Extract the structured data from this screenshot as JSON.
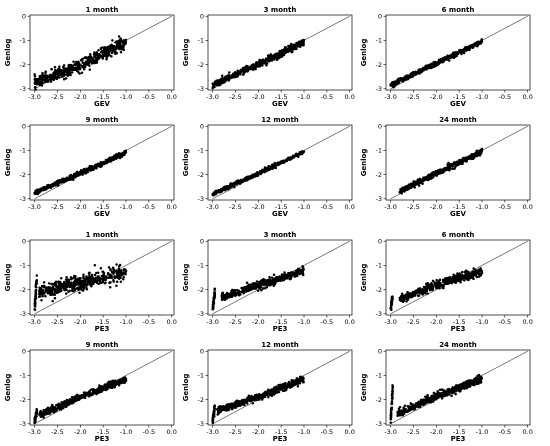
{
  "figure": {
    "rows": [
      {
        "xlabel": "GEV",
        "ylabel": "Genlog",
        "panels": [
          "1 month",
          "3 month",
          "6 month"
        ]
      },
      {
        "xlabel": "GEV",
        "ylabel": "Genlog",
        "panels": [
          "9 month",
          "12 month",
          "24 month"
        ]
      },
      {
        "xlabel": "PE3",
        "ylabel": "Genlog",
        "panels": [
          "1 month",
          "3 month",
          "6 month"
        ]
      },
      {
        "xlabel": "PE3",
        "ylabel": "Genlog",
        "panels": [
          "9 month",
          "12 month",
          "24 month"
        ]
      }
    ]
  },
  "chart_data": [
    {
      "type": "scatter",
      "title": "1 month",
      "xlabel": "GEV",
      "ylabel": "Genlog",
      "xlim": [
        -3.1,
        0.05
      ],
      "ylim": [
        -3.05,
        0.05
      ],
      "xticks": [
        "-3.0",
        "-2.5",
        "-2.0",
        "-1.5",
        "-1.0",
        "-0.5",
        "0.0"
      ],
      "yticks": [
        "0",
        "-1",
        "-2",
        "-3"
      ],
      "reference_line": {
        "x": [
          -3.0,
          0.0
        ],
        "y": [
          -3.0,
          0.0
        ]
      },
      "point_clouds": [
        {
          "x_range": [
            -3.0,
            -1.0
          ],
          "y_at_x": [
            [
              -3.0,
              -2.75
            ],
            [
              -2.0,
              -2.05
            ],
            [
              -1.0,
              -1.05
            ]
          ],
          "spread": 0.28
        }
      ]
    },
    {
      "type": "scatter",
      "title": "3 month",
      "xlabel": "GEV",
      "ylabel": "Genlog",
      "xlim": [
        -3.1,
        0.05
      ],
      "ylim": [
        -3.05,
        0.05
      ],
      "xticks": [
        "-3.0",
        "-2.5",
        "-2.0",
        "-1.5",
        "-1.0",
        "-0.5",
        "0.0"
      ],
      "yticks": [
        "0",
        "-1",
        "-2",
        "-3"
      ],
      "reference_line": {
        "x": [
          -3.0,
          0.0
        ],
        "y": [
          -3.0,
          0.0
        ]
      },
      "point_clouds": [
        {
          "x_range": [
            -3.0,
            -1.0
          ],
          "y_at_x": [
            [
              -3.0,
              -2.85
            ],
            [
              -2.0,
              -2.0
            ],
            [
              -1.0,
              -1.05
            ]
          ],
          "spread": 0.15
        }
      ]
    },
    {
      "type": "scatter",
      "title": "6 month",
      "xlabel": "GEV",
      "ylabel": "Genlog",
      "xlim": [
        -3.1,
        0.05
      ],
      "ylim": [
        -3.05,
        0.05
      ],
      "xticks": [
        "-3.0",
        "-2.5",
        "-2.0",
        "-1.5",
        "-1.0",
        "-0.5",
        "0.0"
      ],
      "yticks": [
        "0",
        "-1",
        "-2",
        "-3"
      ],
      "reference_line": {
        "x": [
          -3.0,
          0.0
        ],
        "y": [
          -3.0,
          0.0
        ]
      },
      "point_clouds": [
        {
          "x_range": [
            -3.0,
            -1.0
          ],
          "y_at_x": [
            [
              -3.0,
              -2.85
            ],
            [
              -2.0,
              -1.95
            ],
            [
              -1.0,
              -1.05
            ]
          ],
          "spread": 0.1
        }
      ]
    },
    {
      "type": "scatter",
      "title": "9 month",
      "xlabel": "GEV",
      "ylabel": "Genlog",
      "xlim": [
        -3.1,
        0.05
      ],
      "ylim": [
        -3.05,
        0.05
      ],
      "xticks": [
        "-3.0",
        "-2.5",
        "-2.0",
        "-1.5",
        "-1.0",
        "-0.5",
        "0.0"
      ],
      "yticks": [
        "0",
        "-1",
        "-2",
        "-3"
      ],
      "reference_line": {
        "x": [
          -3.0,
          0.0
        ],
        "y": [
          -3.0,
          0.0
        ]
      },
      "point_clouds": [
        {
          "x_range": [
            -3.0,
            -1.0
          ],
          "y_at_x": [
            [
              -3.0,
              -2.75
            ],
            [
              -2.0,
              -1.95
            ],
            [
              -1.0,
              -1.1
            ]
          ],
          "spread": 0.1
        }
      ]
    },
    {
      "type": "scatter",
      "title": "12 month",
      "xlabel": "GEV",
      "ylabel": "Genlog",
      "xlim": [
        -3.1,
        0.05
      ],
      "ylim": [
        -3.05,
        0.05
      ],
      "xticks": [
        "-3.0",
        "-2.5",
        "-2.0",
        "-1.5",
        "-1.0",
        "-0.5",
        "0.0"
      ],
      "yticks": [
        "0",
        "-1",
        "-2",
        "-3"
      ],
      "reference_line": {
        "x": [
          -3.0,
          0.0
        ],
        "y": [
          -3.0,
          0.0
        ]
      },
      "point_clouds": [
        {
          "x_range": [
            -3.0,
            -1.0
          ],
          "y_at_x": [
            [
              -3.0,
              -2.8
            ],
            [
              -2.0,
              -1.95
            ],
            [
              -1.0,
              -1.05
            ]
          ],
          "spread": 0.08
        }
      ]
    },
    {
      "type": "scatter",
      "title": "24 month",
      "xlabel": "GEV",
      "ylabel": "Genlog",
      "xlim": [
        -3.1,
        0.05
      ],
      "ylim": [
        -3.05,
        0.05
      ],
      "xticks": [
        "-3.0",
        "-2.5",
        "-2.0",
        "-1.5",
        "-1.0",
        "-0.5",
        "0.0"
      ],
      "yticks": [
        "0",
        "-1",
        "-2",
        "-3"
      ],
      "reference_line": {
        "x": [
          -3.0,
          0.0
        ],
        "y": [
          -3.0,
          0.0
        ]
      },
      "point_clouds": [
        {
          "x_range": [
            -2.8,
            -1.0
          ],
          "y_at_x": [
            [
              -2.8,
              -2.7
            ],
            [
              -2.0,
              -1.95
            ],
            [
              -1.0,
              -1.05
            ]
          ],
          "spread": 0.12
        }
      ]
    },
    {
      "type": "scatter",
      "title": "1 month",
      "xlabel": "PE3",
      "ylabel": "Genlog",
      "xlim": [
        -3.1,
        0.05
      ],
      "ylim": [
        -3.05,
        0.05
      ],
      "xticks": [
        "-3.0",
        "-2.5",
        "-2.0",
        "-1.5",
        "-1.0",
        "-0.5",
        "0.0"
      ],
      "yticks": [
        "0",
        "-1",
        "-2",
        "-3"
      ],
      "reference_line": {
        "x": [
          -3.0,
          0.0
        ],
        "y": [
          -3.0,
          0.0
        ]
      },
      "point_clouds": [
        {
          "x_range": [
            -3.0,
            -2.95
          ],
          "y_at_x": [
            [
              -3.0,
              -2.9
            ],
            [
              -2.95,
              -1.5
            ]
          ],
          "spread": 0.3
        },
        {
          "x_range": [
            -2.9,
            -1.0
          ],
          "y_at_x": [
            [
              -2.9,
              -2.1
            ],
            [
              -2.0,
              -1.75
            ],
            [
              -1.0,
              -1.25
            ]
          ],
          "spread": 0.35
        }
      ]
    },
    {
      "type": "scatter",
      "title": "3 month",
      "xlabel": "PE3",
      "ylabel": "Genlog",
      "xlim": [
        -3.1,
        0.05
      ],
      "ylim": [
        -3.05,
        0.05
      ],
      "xticks": [
        "-3.0",
        "-2.5",
        "-2.0",
        "-1.5",
        "-1.0",
        "-0.5",
        "0.0"
      ],
      "yticks": [
        "0",
        "-1",
        "-2",
        "-3"
      ],
      "reference_line": {
        "x": [
          -3.0,
          0.0
        ],
        "y": [
          -3.0,
          0.0
        ]
      },
      "point_clouds": [
        {
          "x_range": [
            -3.0,
            -2.95
          ],
          "y_at_x": [
            [
              -3.0,
              -2.85
            ],
            [
              -2.95,
              -2.1
            ]
          ],
          "spread": 0.2
        },
        {
          "x_range": [
            -2.8,
            -1.0
          ],
          "y_at_x": [
            [
              -2.8,
              -2.3
            ],
            [
              -2.0,
              -1.85
            ],
            [
              -1.0,
              -1.2
            ]
          ],
          "spread": 0.18
        }
      ]
    },
    {
      "type": "scatter",
      "title": "6 month",
      "xlabel": "PE3",
      "ylabel": "Genlog",
      "xlim": [
        -3.1,
        0.05
      ],
      "ylim": [
        -3.05,
        0.05
      ],
      "xticks": [
        "-3.0",
        "-2.5",
        "-2.0",
        "-1.5",
        "-1.0",
        "-0.5",
        "0.0"
      ],
      "yticks": [
        "0",
        "-1",
        "-2",
        "-3"
      ],
      "reference_line": {
        "x": [
          -3.0,
          0.0
        ],
        "y": [
          -3.0,
          0.0
        ]
      },
      "point_clouds": [
        {
          "x_range": [
            -3.0,
            -2.95
          ],
          "y_at_x": [
            [
              -3.0,
              -2.85
            ],
            [
              -2.95,
              -2.2
            ]
          ],
          "spread": 0.2
        },
        {
          "x_range": [
            -2.8,
            -1.0
          ],
          "y_at_x": [
            [
              -2.8,
              -2.4
            ],
            [
              -2.0,
              -1.8
            ],
            [
              -1.0,
              -1.25
            ]
          ],
          "spread": 0.18
        }
      ]
    },
    {
      "type": "scatter",
      "title": "9 month",
      "xlabel": "PE3",
      "ylabel": "Genlog",
      "xlim": [
        -3.1,
        0.05
      ],
      "ylim": [
        -3.05,
        0.05
      ],
      "xticks": [
        "-3.0",
        "-2.5",
        "-2.0",
        "-1.5",
        "-1.0",
        "-0.5",
        "0.0"
      ],
      "yticks": [
        "0",
        "-1",
        "-2",
        "-3"
      ],
      "reference_line": {
        "x": [
          -3.0,
          0.0
        ],
        "y": [
          -3.0,
          0.0
        ]
      },
      "point_clouds": [
        {
          "x_range": [
            -3.0,
            -2.95
          ],
          "y_at_x": [
            [
              -3.0,
              -2.9
            ],
            [
              -2.95,
              -2.5
            ]
          ],
          "spread": 0.15
        },
        {
          "x_range": [
            -2.9,
            -1.0
          ],
          "y_at_x": [
            [
              -2.9,
              -2.65
            ],
            [
              -2.0,
              -1.9
            ],
            [
              -1.0,
              -1.15
            ]
          ],
          "spread": 0.15
        }
      ]
    },
    {
      "type": "scatter",
      "title": "12 month",
      "xlabel": "PE3",
      "ylabel": "Genlog",
      "xlim": [
        -3.1,
        0.05
      ],
      "ylim": [
        -3.05,
        0.05
      ],
      "xticks": [
        "-3.0",
        "-2.5",
        "-2.0",
        "-1.5",
        "-1.0",
        "-0.5",
        "0.0"
      ],
      "yticks": [
        "0",
        "-1",
        "-2",
        "-3"
      ],
      "reference_line": {
        "x": [
          -3.0,
          0.0
        ],
        "y": [
          -3.0,
          0.0
        ]
      },
      "point_clouds": [
        {
          "x_range": [
            -3.0,
            -2.95
          ],
          "y_at_x": [
            [
              -3.0,
              -2.85
            ],
            [
              -2.95,
              -2.3
            ]
          ],
          "spread": 0.2
        },
        {
          "x_range": [
            -2.9,
            -1.0
          ],
          "y_at_x": [
            [
              -2.9,
              -2.45
            ],
            [
              -2.0,
              -1.9
            ],
            [
              -1.0,
              -1.15
            ]
          ],
          "spread": 0.15
        }
      ]
    },
    {
      "type": "scatter",
      "title": "24 month",
      "xlabel": "PE3",
      "ylabel": "Genlog",
      "xlim": [
        -3.1,
        0.05
      ],
      "ylim": [
        -3.05,
        0.05
      ],
      "xticks": [
        "-3.0",
        "-2.5",
        "-2.0",
        "-1.5",
        "-1.0",
        "-0.5",
        "0.0"
      ],
      "yticks": [
        "0",
        "-1",
        "-2",
        "-3"
      ],
      "reference_line": {
        "x": [
          -3.0,
          0.0
        ],
        "y": [
          -3.0,
          0.0
        ]
      },
      "point_clouds": [
        {
          "x_range": [
            -3.0,
            -2.95
          ],
          "y_at_x": [
            [
              -3.0,
              -2.9
            ],
            [
              -2.95,
              -1.5
            ]
          ],
          "spread": 0.3
        },
        {
          "x_range": [
            -2.85,
            -1.0
          ],
          "y_at_x": [
            [
              -2.85,
              -2.6
            ],
            [
              -2.0,
              -1.85
            ],
            [
              -1.0,
              -1.15
            ]
          ],
          "spread": 0.18
        }
      ]
    }
  ]
}
